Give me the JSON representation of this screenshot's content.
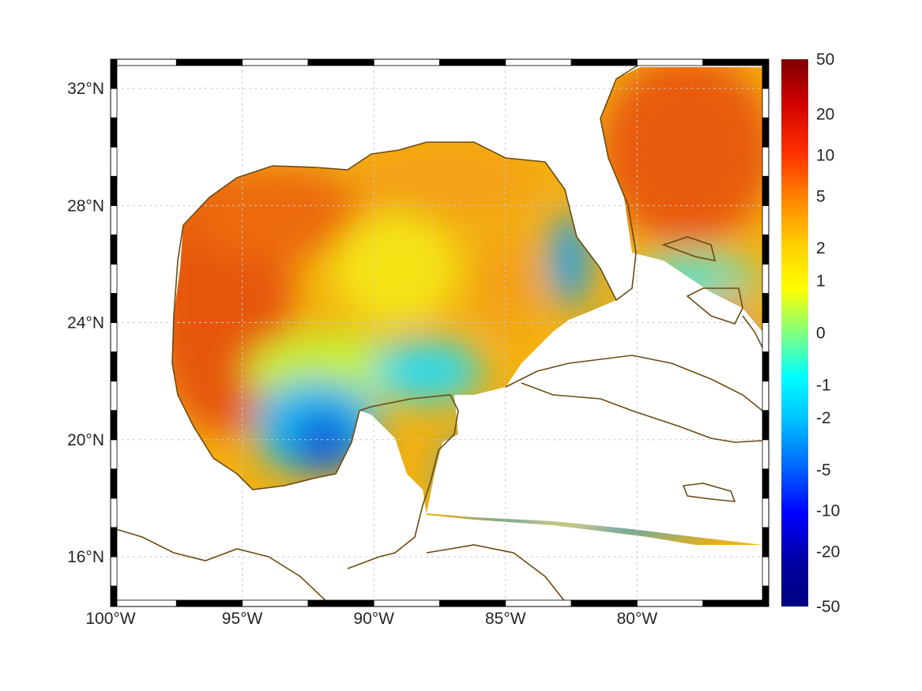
{
  "map": {
    "region": "Gulf of Mexico and Caribbean",
    "lon_range": [
      -100,
      -75
    ],
    "lat_range": [
      14.3,
      33
    ],
    "field_colors": {
      "positive_high": "#d93a0a",
      "positive_mid": "#f59a14",
      "near_zero": "#f6f01c",
      "negative_mid": "#18b8f0",
      "negative_low": "#1060d8",
      "coastline": "#6b4a12",
      "grid": "#c8c8c8",
      "land": "#ffffff"
    },
    "lon_labels": [
      {
        "value": -100,
        "text": "100°W"
      },
      {
        "value": -95,
        "text": "95°W"
      },
      {
        "value": -90,
        "text": "90°W"
      },
      {
        "value": -85,
        "text": "85°W"
      },
      {
        "value": -80,
        "text": "80°W"
      }
    ],
    "lat_labels": [
      {
        "value": 32,
        "text": "32°N"
      },
      {
        "value": 28,
        "text": "28°N"
      },
      {
        "value": 24,
        "text": "24°N"
      },
      {
        "value": 20,
        "text": "20°N"
      },
      {
        "value": 16,
        "text": "16°N"
      }
    ]
  },
  "colorbar": {
    "ticks": [
      "50",
      "20",
      "10",
      "5",
      "2",
      "1",
      "0",
      "-1",
      "-2",
      "-5",
      "-10",
      "-20",
      "-50"
    ],
    "colors_top_to_bottom": [
      "#800000",
      "#d00000",
      "#ff3000",
      "#ff8000",
      "#ffd000",
      "#ffff00",
      "#80ff80",
      "#00ffff",
      "#00c0ff",
      "#0060ff",
      "#0000ff",
      "#0000a0",
      "#000080"
    ]
  }
}
